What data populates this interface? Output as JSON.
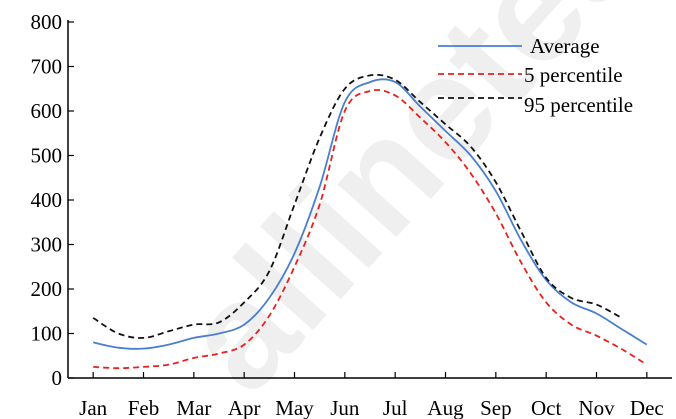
{
  "chart_data": {
    "type": "line",
    "categories": [
      "Jan",
      "Feb",
      "Mar",
      "Apr",
      "May",
      "Jun",
      "Jul",
      "Aug",
      "Sep",
      "Oct",
      "Nov",
      "Dec"
    ],
    "ylim": [
      0,
      800
    ],
    "yticks": [
      0,
      100,
      200,
      300,
      400,
      500,
      600,
      700,
      800
    ],
    "grid": false,
    "legend_position": "top-right",
    "series": [
      {
        "name": "Average",
        "color": "#4a7fd0",
        "style": "solid",
        "x": [
          1,
          1.5,
          2,
          2.5,
          3,
          3.5,
          4,
          4.5,
          5,
          5.5,
          6,
          6.5,
          7,
          7.5,
          8,
          8.5,
          9,
          9.5,
          10,
          10.5,
          11,
          11.5,
          12
        ],
        "values": [
          80,
          68,
          66,
          75,
          90,
          100,
          120,
          180,
          280,
          430,
          620,
          665,
          665,
          610,
          555,
          500,
          420,
          310,
          220,
          170,
          145,
          110,
          75
        ]
      },
      {
        "name": "5 percentile",
        "color": "#e8201e",
        "style": "dashed",
        "x": [
          1,
          1.5,
          2,
          2.5,
          3,
          3.5,
          4,
          4.5,
          5,
          5.5,
          6,
          6.5,
          7,
          7.5,
          8,
          8.5,
          9,
          9.5,
          10,
          10.5,
          11,
          11.5,
          12
        ],
        "values": [
          25,
          22,
          25,
          30,
          45,
          55,
          75,
          140,
          250,
          390,
          600,
          645,
          635,
          585,
          530,
          460,
          370,
          260,
          170,
          120,
          95,
          65,
          30
        ]
      },
      {
        "name": "95 percentile",
        "color": "#111111",
        "style": "dashed",
        "x": [
          1,
          1.5,
          2,
          2.5,
          3,
          3.5,
          4,
          4.5,
          5,
          5.5,
          6,
          6.5,
          7,
          7.5,
          8,
          8.5,
          9,
          9.5,
          10,
          10.5,
          11,
          11.5
        ],
        "values": [
          135,
          100,
          90,
          105,
          120,
          125,
          170,
          240,
          390,
          540,
          650,
          680,
          670,
          620,
          570,
          520,
          440,
          330,
          225,
          180,
          165,
          135
        ]
      }
    ]
  },
  "watermark": "allinetest"
}
